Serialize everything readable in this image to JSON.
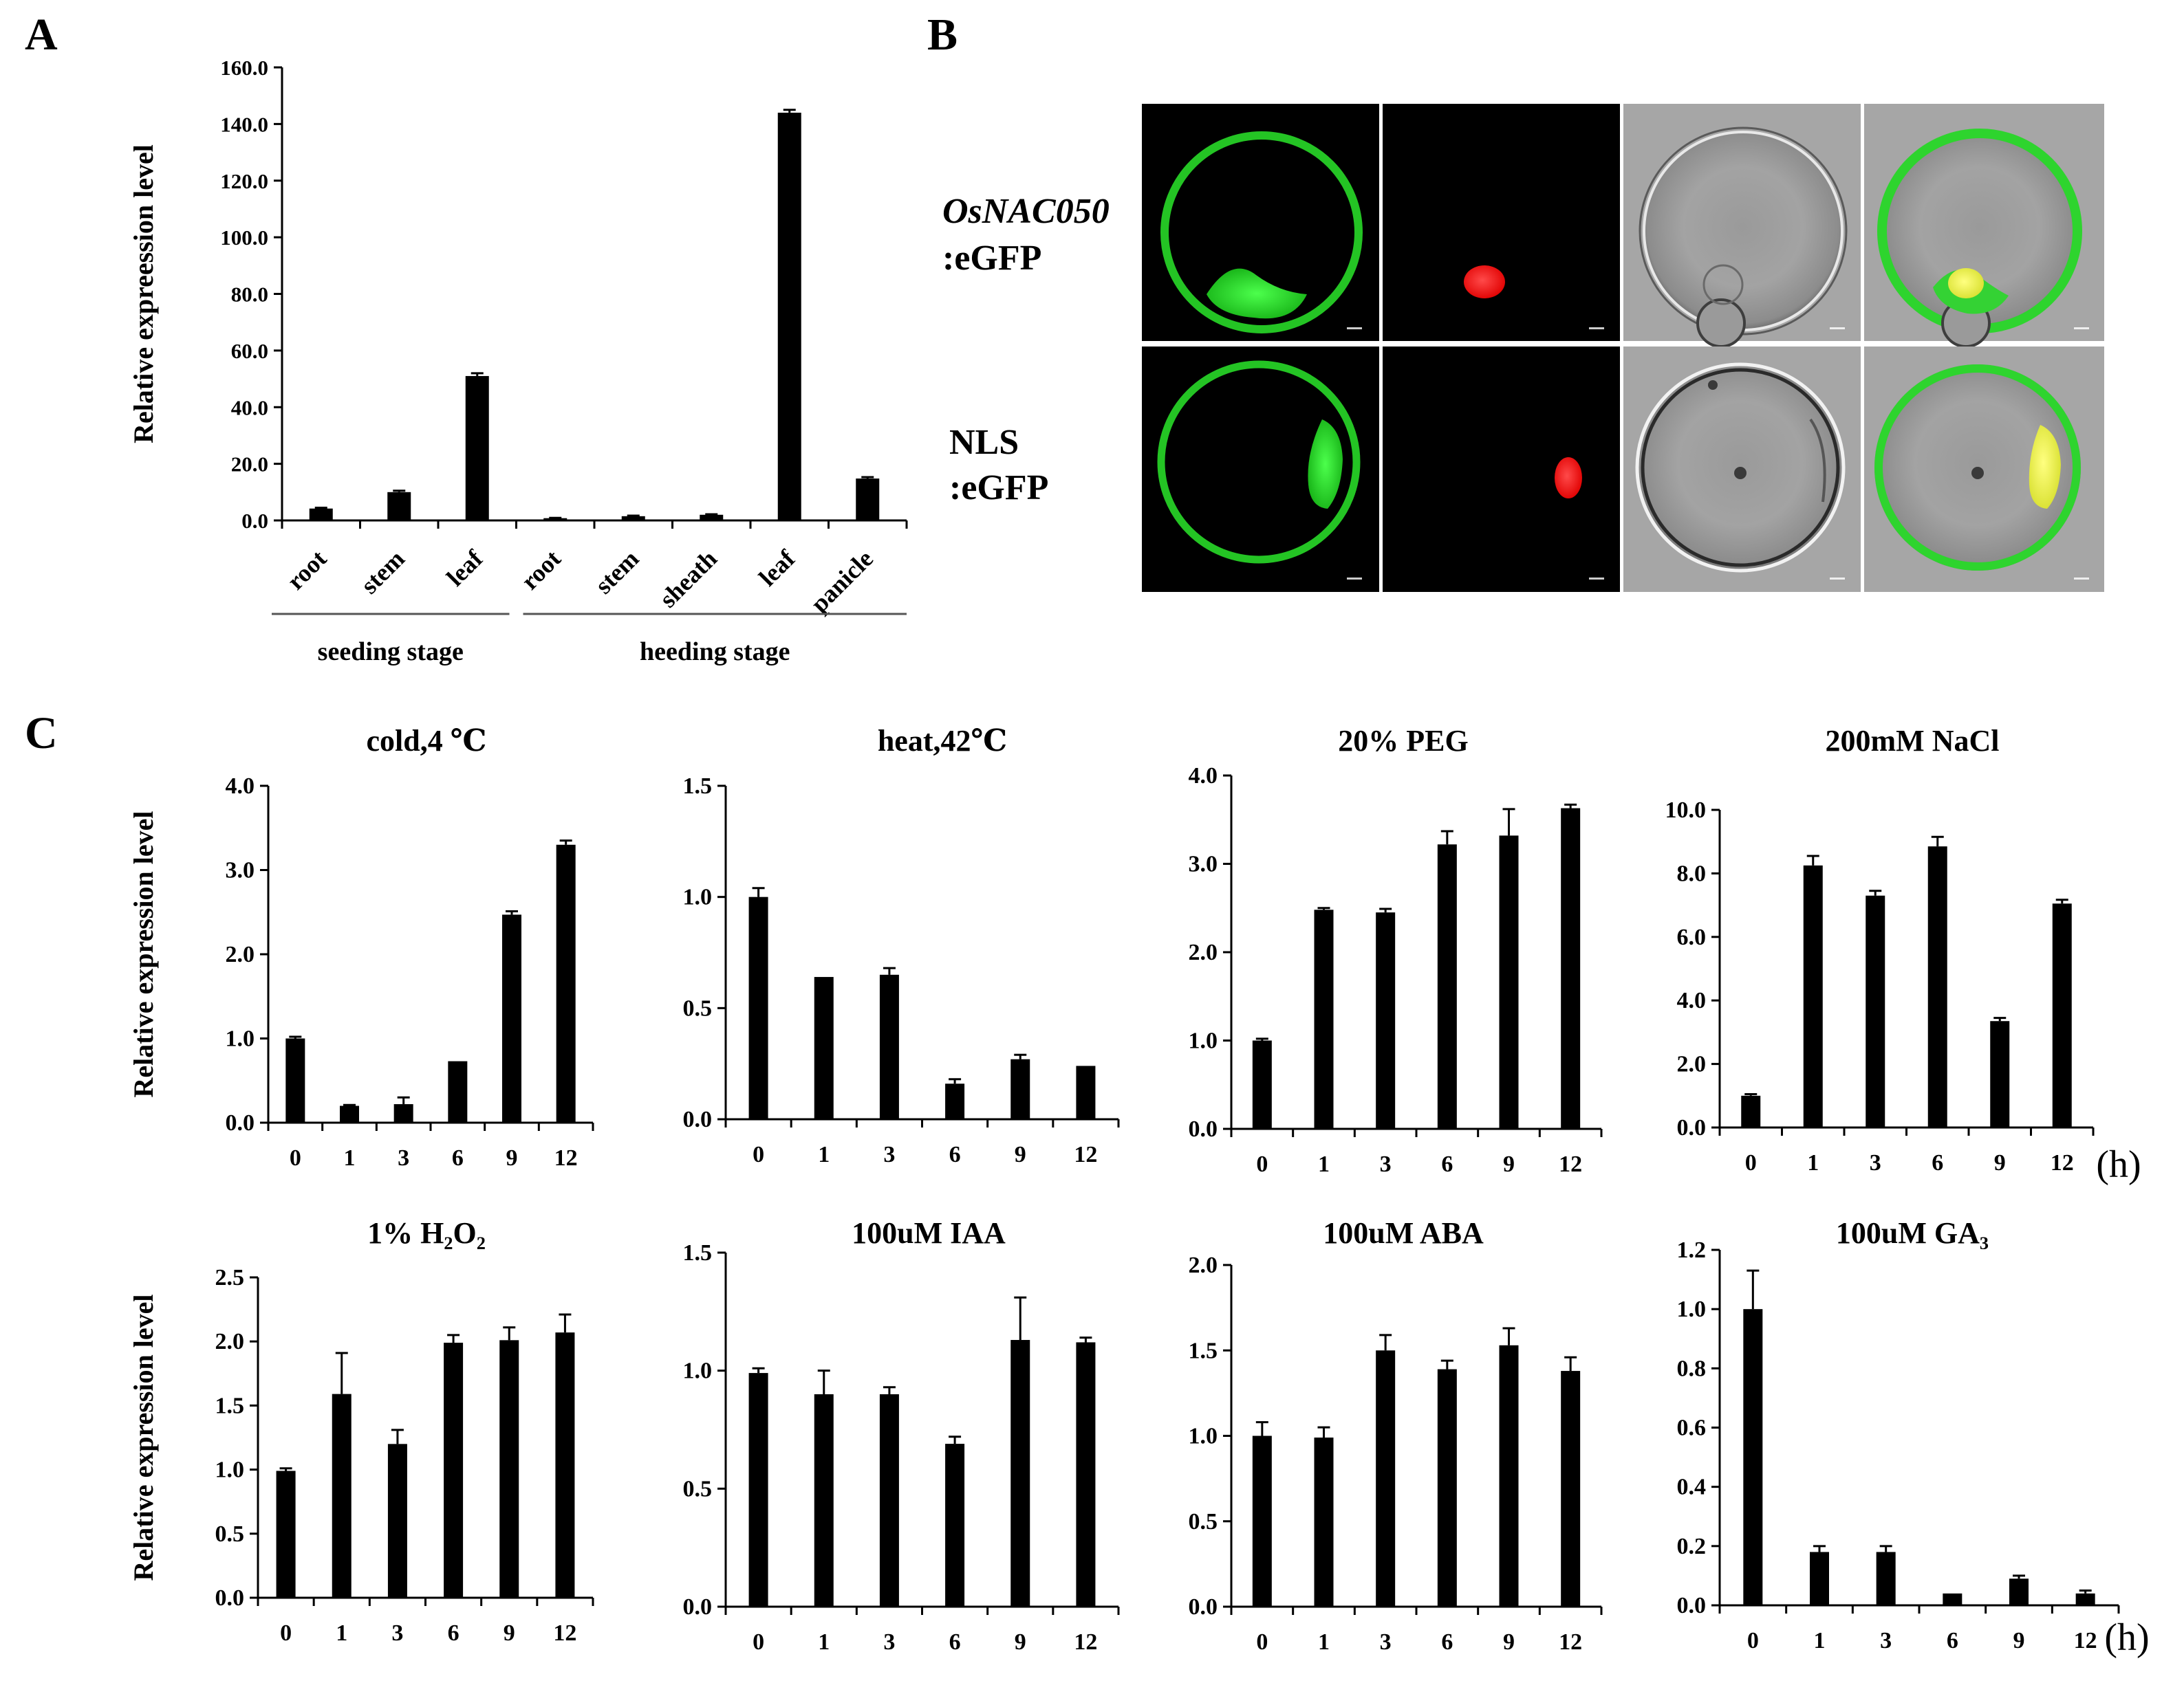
{
  "panel_labels": {
    "a": "A",
    "b": "B",
    "c": "C"
  },
  "panel_b": {
    "rows": [
      {
        "line1": "OsNAC050",
        "line2": ":eGFP"
      },
      {
        "line1": "NLS",
        "line2": ":eGFP"
      }
    ]
  },
  "colors": {
    "bar": "#000000",
    "gfp": "#2bd12b",
    "nucleus": "#ff1010",
    "merge_yellow": "#f5f040",
    "bright_field": "#a8a8a8"
  },
  "chart_data": [
    {
      "id": "A",
      "type": "bar",
      "ylabel": "Relative  expreession  level",
      "ylim": [
        0,
        160
      ],
      "yticks": [
        "0.0",
        "20.0",
        "40.0",
        "60.0",
        "80.0",
        "100.0",
        "120.0",
        "140.0",
        "160.0"
      ],
      "categories": [
        "root",
        "stem",
        "leaf",
        "root",
        "stem",
        "sheath",
        "leaf",
        "panicle"
      ],
      "values": [
        4.2,
        10.0,
        51.0,
        0.8,
        1.5,
        2.0,
        144.0,
        14.8
      ],
      "errors": [
        0.3,
        0.5,
        1.0,
        0.1,
        0.2,
        0.2,
        1.0,
        0.5
      ],
      "groups": [
        {
          "label": "seeding stage",
          "start": 0,
          "end": 2
        },
        {
          "label": "heeding stage",
          "start": 3,
          "end": 7
        }
      ]
    },
    {
      "id": "C1",
      "type": "bar",
      "title": "cold,4 ℃",
      "ylabel": "Relative  expression  level",
      "categories": [
        "0",
        "1",
        "3",
        "6",
        "9",
        "12"
      ],
      "values": [
        1.0,
        0.2,
        0.22,
        0.73,
        2.47,
        3.3
      ],
      "errors": [
        0.02,
        0.01,
        0.08,
        0.0,
        0.04,
        0.05
      ],
      "ylim": [
        0,
        4
      ],
      "yticks": [
        "0.0",
        "1.0",
        "2.0",
        "3.0",
        "4.0"
      ]
    },
    {
      "id": "C2",
      "type": "bar",
      "title": "heat,42℃",
      "categories": [
        "0",
        "1",
        "3",
        "6",
        "9",
        "12"
      ],
      "values": [
        1.0,
        0.64,
        0.65,
        0.16,
        0.27,
        0.24
      ],
      "errors": [
        0.04,
        0.0,
        0.03,
        0.02,
        0.02,
        0.0
      ],
      "ylim": [
        0,
        1.5
      ],
      "yticks": [
        "0.0",
        "0.5",
        "1.0",
        "1.5"
      ]
    },
    {
      "id": "C3",
      "type": "bar",
      "title": "20% PEG",
      "categories": [
        "0",
        "1",
        "3",
        "6",
        "9",
        "12"
      ],
      "values": [
        1.0,
        2.48,
        2.45,
        3.22,
        3.32,
        3.63
      ],
      "errors": [
        0.02,
        0.02,
        0.04,
        0.15,
        0.3,
        0.04
      ],
      "ylim": [
        0,
        4
      ],
      "yticks": [
        "0.0",
        "1.0",
        "2.0",
        "3.0",
        "4.0"
      ]
    },
    {
      "id": "C4",
      "type": "bar",
      "title": "200mM NaCl",
      "categories": [
        "0",
        "1",
        "3",
        "6",
        "9",
        "12"
      ],
      "values": [
        1.0,
        8.25,
        7.3,
        8.85,
        3.35,
        7.05
      ],
      "errors": [
        0.05,
        0.3,
        0.15,
        0.3,
        0.1,
        0.12
      ],
      "ylim": [
        0,
        10
      ],
      "yticks": [
        "0.0",
        "2.0",
        "4.0",
        "6.0",
        "8.0",
        "10.0"
      ],
      "unit": "(h)"
    },
    {
      "id": "C5",
      "type": "bar",
      "title": "1% H₂O₂",
      "ylabel": "Relative  expression  level",
      "categories": [
        "0",
        "1",
        "3",
        "6",
        "9",
        "12"
      ],
      "values": [
        0.99,
        1.59,
        1.2,
        1.99,
        2.01,
        2.07
      ],
      "errors": [
        0.02,
        0.32,
        0.11,
        0.06,
        0.1,
        0.14
      ],
      "ylim": [
        0,
        2.5
      ],
      "yticks": [
        "0.0",
        "0.5",
        "1.0",
        "1.5",
        "2.0",
        "2.5"
      ]
    },
    {
      "id": "C6",
      "type": "bar",
      "title": "100uM IAA",
      "categories": [
        "0",
        "1",
        "3",
        "6",
        "9",
        "12"
      ],
      "values": [
        0.99,
        0.9,
        0.9,
        0.69,
        1.13,
        1.12
      ],
      "errors": [
        0.02,
        0.1,
        0.03,
        0.03,
        0.18,
        0.02
      ],
      "ylim": [
        0,
        1.5
      ],
      "yticks": [
        "0.0",
        "0.5",
        "1.0",
        "1.5"
      ]
    },
    {
      "id": "C7",
      "type": "bar",
      "title": "100uM ABA",
      "categories": [
        "0",
        "1",
        "3",
        "6",
        "9",
        "12"
      ],
      "values": [
        1.0,
        0.99,
        1.5,
        1.39,
        1.53,
        1.38
      ],
      "errors": [
        0.08,
        0.06,
        0.09,
        0.05,
        0.1,
        0.08
      ],
      "ylim": [
        0,
        2.0
      ],
      "yticks": [
        "0.0",
        "0.5",
        "1.0",
        "1.5",
        "2.0"
      ]
    },
    {
      "id": "C8",
      "type": "bar",
      "title": "100uM GA₃",
      "categories": [
        "0",
        "1",
        "3",
        "6",
        "9",
        "12"
      ],
      "values": [
        1.0,
        0.18,
        0.18,
        0.04,
        0.09,
        0.04
      ],
      "errors": [
        0.13,
        0.02,
        0.02,
        0.0,
        0.01,
        0.01
      ],
      "ylim": [
        0,
        1.2
      ],
      "yticks": [
        "0.0",
        "0.2",
        "0.4",
        "0.6",
        "0.8",
        "1.0",
        "1.2"
      ],
      "unit": "(h)"
    }
  ]
}
